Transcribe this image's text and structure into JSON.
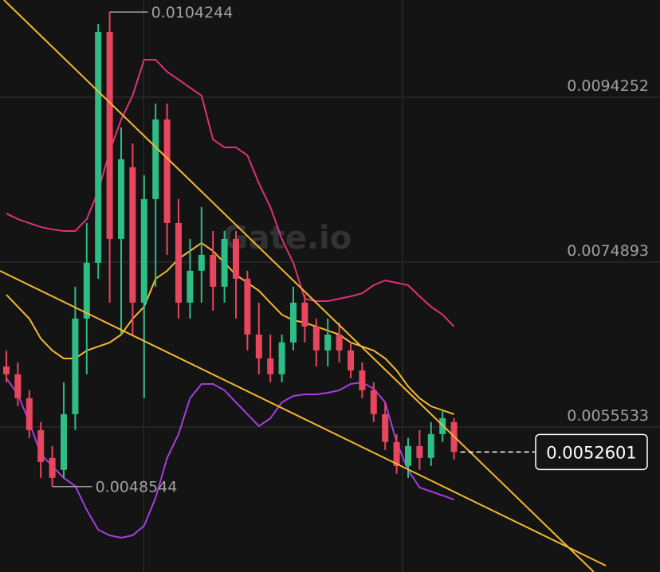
{
  "chart_data": {
    "type": "candlestick",
    "watermark": "Gate.io",
    "ylim": [
      0.003851,
      0.010566
    ],
    "yticks": [
      0.0055533,
      0.0074893,
      0.0094252
    ],
    "grid": true,
    "up_color": "#2ebd85",
    "down_color": "#e8455e",
    "open": [
      0.006265,
      0.006172,
      0.005891,
      0.005517,
      0.00519,
      0.00505,
      0.005704,
      0.006826,
      0.007481,
      0.010192,
      0.007761,
      0.008603,
      0.007013,
      0.008229,
      0.009164,
      0.007948,
      0.007013,
      0.007387,
      0.007574,
      0.0072,
      0.007761,
      0.007294,
      0.006639,
      0.006359,
      0.006172,
      0.006546,
      0.007013,
      0.006733,
      0.006452,
      0.006639,
      0.006452,
      0.006218,
      0.005985,
      0.005704,
      0.005377,
      0.005096,
      0.00533,
      0.00519,
      0.00547,
      0.005611
    ],
    "high": [
      0.006452,
      0.006312,
      0.005985,
      0.005611,
      0.00533,
      0.006078,
      0.0072,
      0.007948,
      0.010286,
      0.0104244,
      0.00907,
      0.008883,
      0.008509,
      0.00935,
      0.00935,
      0.008229,
      0.007761,
      0.008135,
      0.007855,
      0.007855,
      0.007855,
      0.007387,
      0.007013,
      0.006639,
      0.006639,
      0.0072,
      0.007107,
      0.006826,
      0.006826,
      0.006779,
      0.006546,
      0.006312,
      0.006078,
      0.005845,
      0.00547,
      0.005424,
      0.005517,
      0.005611,
      0.005751,
      0.005657
    ],
    "low": [
      0.006078,
      0.005798,
      0.005424,
      0.004956,
      0.0048544,
      0.004956,
      0.005517,
      0.006172,
      0.007294,
      0.007013,
      0.006639,
      0.006639,
      0.005891,
      0.0072,
      0.007574,
      0.006826,
      0.006826,
      0.007013,
      0.00692,
      0.007013,
      0.006826,
      0.006452,
      0.006172,
      0.006078,
      0.006078,
      0.006452,
      0.006546,
      0.006265,
      0.006265,
      0.006312,
      0.006125,
      0.005891,
      0.005611,
      0.005283,
      0.005003,
      0.004956,
      0.00505,
      0.005096,
      0.005377,
      0.005171
    ],
    "close": [
      0.006172,
      0.005891,
      0.005517,
      0.005143,
      0.004956,
      0.005704,
      0.006826,
      0.007481,
      0.010192,
      0.007761,
      0.008696,
      0.007013,
      0.008229,
      0.009164,
      0.007948,
      0.007013,
      0.007387,
      0.007574,
      0.0072,
      0.007761,
      0.007294,
      0.006639,
      0.006359,
      0.006172,
      0.006546,
      0.007013,
      0.006733,
      0.006452,
      0.006639,
      0.006452,
      0.006218,
      0.005985,
      0.005704,
      0.005377,
      0.005096,
      0.00533,
      0.00519,
      0.00547,
      0.005657,
      0.0052601
    ],
    "bands": [
      {
        "color": "#e0307a",
        "values": [
          0.00806,
          0.007994,
          0.007947,
          0.007901,
          0.007873,
          0.007854,
          0.007854,
          0.007994,
          0.008322,
          0.008789,
          0.009163,
          0.009444,
          0.009865,
          0.009865,
          0.009724,
          0.009631,
          0.009537,
          0.009444,
          0.008929,
          0.008836,
          0.008836,
          0.008742,
          0.008415,
          0.008134,
          0.00776,
          0.00748,
          0.007059,
          0.007031,
          0.007031,
          0.007059,
          0.007087,
          0.007124,
          0.007218,
          0.007274,
          0.007246,
          0.007218,
          0.007087,
          0.006965,
          0.006872,
          0.006732
        ]
      },
      {
        "color": "#f5b731",
        "values": [
          0.007106,
          0.006965,
          0.006825,
          0.006591,
          0.006451,
          0.006358,
          0.006358,
          0.006451,
          0.006498,
          0.006545,
          0.006638,
          0.006825,
          0.006965,
          0.007293,
          0.007386,
          0.007527,
          0.00762,
          0.007714,
          0.00762,
          0.00748,
          0.00734,
          0.007246,
          0.007153,
          0.007012,
          0.006872,
          0.006806,
          0.006778,
          0.006732,
          0.006685,
          0.006638,
          0.006545,
          0.006498,
          0.006451,
          0.006358,
          0.006217,
          0.00603,
          0.00589,
          0.005796,
          0.00575,
          0.005703
        ]
      },
      {
        "color": "#a43fe0",
        "values": [
          0.006124,
          0.005937,
          0.005609,
          0.005235,
          0.005095,
          0.004955,
          0.004861,
          0.004581,
          0.004347,
          0.004281,
          0.004253,
          0.004281,
          0.004394,
          0.004721,
          0.005189,
          0.005469,
          0.00589,
          0.006058,
          0.006058,
          0.005984,
          0.005843,
          0.005703,
          0.005563,
          0.005656,
          0.005843,
          0.005918,
          0.005937,
          0.005937,
          0.005955,
          0.005984,
          0.006058,
          0.006077,
          0.006002,
          0.005843,
          0.005376,
          0.005048,
          0.004843,
          0.004796,
          0.004749,
          0.004702
        ]
      }
    ]
  }
}
